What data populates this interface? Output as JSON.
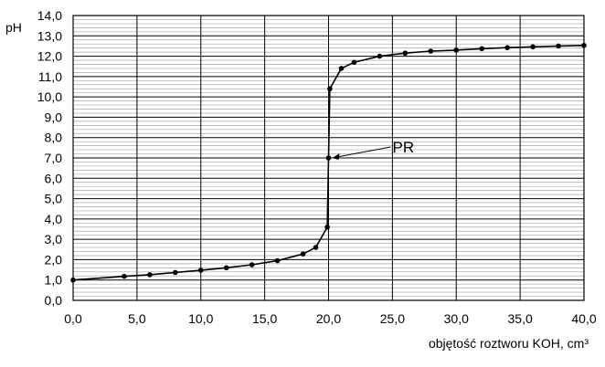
{
  "chart_data": {
    "type": "line",
    "title": "",
    "xlabel": "objętość roztworu KOH, cm³",
    "ylabel": "pH",
    "xlim": [
      0,
      40
    ],
    "ylim": [
      0,
      14
    ],
    "x_ticks": [
      "0,0",
      "5,0",
      "10,0",
      "15,0",
      "20,0",
      "25,0",
      "30,0",
      "35,0",
      "40,0"
    ],
    "y_ticks": [
      "0,0",
      "1,0",
      "2,0",
      "3,0",
      "4,0",
      "5,0",
      "6,0",
      "7,0",
      "8,0",
      "9,0",
      "10,0",
      "11,0",
      "12,0",
      "13,0",
      "14,0"
    ],
    "grid": true,
    "series": [
      {
        "x": [
          0,
          4,
          6,
          8,
          10,
          12,
          14,
          16,
          18,
          19,
          19.9,
          20,
          20.1,
          21,
          22,
          24,
          26,
          28,
          30,
          32,
          34,
          36,
          38,
          40
        ],
        "y": [
          1.0,
          1.18,
          1.26,
          1.37,
          1.48,
          1.6,
          1.75,
          1.95,
          2.28,
          2.6,
          3.6,
          7.0,
          10.4,
          11.4,
          11.7,
          12.0,
          12.15,
          12.25,
          12.3,
          12.37,
          12.42,
          12.46,
          12.5,
          12.53
        ]
      }
    ],
    "annotations": [
      {
        "text": "PR",
        "x": 20,
        "y": 7.0
      }
    ]
  }
}
